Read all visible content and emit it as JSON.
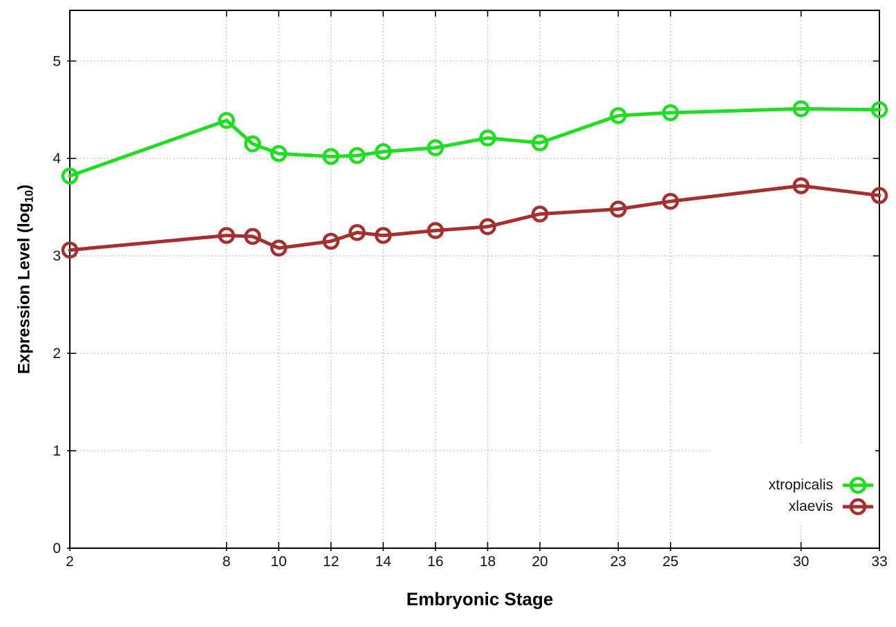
{
  "page": {
    "background": "#ffffff",
    "border_color": "#000000",
    "grid_color": "#9a9a9a"
  },
  "chart_data": {
    "type": "line",
    "title": "",
    "xlabel": "Embryonic Stage",
    "ylabel": "Expression Level (log10)",
    "ylabel_parts": {
      "prefix": "Expression Level (log",
      "sub": "10",
      "suffix": ")"
    },
    "xlim": [
      2,
      33
    ],
    "ylim": [
      0,
      5.52
    ],
    "grid": true,
    "legend_position": "inside-bottom-right",
    "x_tick_values": [
      2,
      8,
      10,
      12,
      14,
      16,
      18,
      20,
      23,
      25,
      30,
      33
    ],
    "x_tick_labels": [
      "2",
      "8",
      "10",
      "12",
      "14",
      "16",
      "18",
      "20",
      "23",
      "25",
      "30",
      "33"
    ],
    "y_tick_values": [
      0,
      1,
      2,
      3,
      4,
      5
    ],
    "y_tick_labels": [
      "0",
      "1",
      "2",
      "3",
      "4",
      "5"
    ],
    "x": [
      2,
      8,
      9,
      10,
      12,
      13,
      14,
      16,
      18,
      20,
      23,
      25,
      30,
      33
    ],
    "series": [
      {
        "name": "xtropicalis",
        "color": "#1fdd1f",
        "values": [
          3.82,
          4.39,
          4.15,
          4.05,
          4.02,
          4.03,
          4.07,
          4.11,
          4.21,
          4.16,
          4.44,
          4.47,
          4.51,
          4.5
        ]
      },
      {
        "name": "xlaevis",
        "color": "#a42f2f",
        "values": [
          3.06,
          3.21,
          3.2,
          3.08,
          3.15,
          3.24,
          3.21,
          3.26,
          3.3,
          3.43,
          3.48,
          3.56,
          3.72,
          3.62
        ]
      }
    ]
  }
}
